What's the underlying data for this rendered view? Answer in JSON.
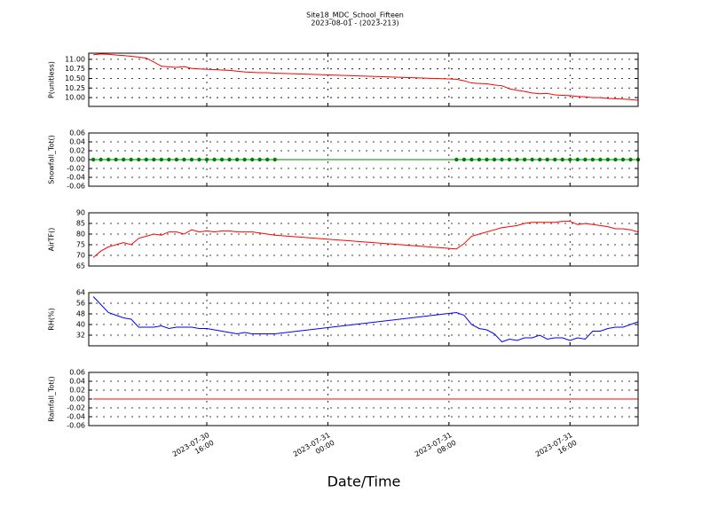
{
  "title": "Site18_MDC_School_Fifteen",
  "subtitle": "2023-08-01 - (2023-213)",
  "x_axis": {
    "label": "Date/Time",
    "xlim": [
      "2023-07-30 08:12",
      "2023-07-31 20:30"
    ],
    "xticks": [
      {
        "value": "2023-07-30 16:00",
        "label": "2023-07-30\n16:00"
      },
      {
        "value": "2023-07-31 00:00",
        "label": "2023-07-31\n00:00"
      },
      {
        "value": "2023-07-31 08:00",
        "label": "2023-07-31\n08:00"
      },
      {
        "value": "2023-07-31 16:00",
        "label": "2023-07-31\n16:00"
      }
    ],
    "x": [
      "2023-07-30 08:30",
      "2023-07-30 09:00",
      "2023-07-30 09:30",
      "2023-07-30 10:00",
      "2023-07-30 10:30",
      "2023-07-30 11:00",
      "2023-07-30 11:30",
      "2023-07-30 12:00",
      "2023-07-30 12:30",
      "2023-07-30 13:00",
      "2023-07-30 13:30",
      "2023-07-30 14:00",
      "2023-07-30 14:30",
      "2023-07-30 15:00",
      "2023-07-30 15:30",
      "2023-07-30 16:00",
      "2023-07-30 16:30",
      "2023-07-30 17:00",
      "2023-07-30 17:30",
      "2023-07-30 18:00",
      "2023-07-30 18:30",
      "2023-07-30 19:00",
      "2023-07-30 19:30",
      "2023-07-30 20:00",
      "2023-07-30 20:30",
      "2023-07-31 08:30",
      "2023-07-31 09:00",
      "2023-07-31 09:30",
      "2023-07-31 10:00",
      "2023-07-31 10:30",
      "2023-07-31 11:00",
      "2023-07-31 11:30",
      "2023-07-31 12:00",
      "2023-07-31 12:30",
      "2023-07-31 13:00",
      "2023-07-31 13:30",
      "2023-07-31 14:00",
      "2023-07-31 14:30",
      "2023-07-31 15:00",
      "2023-07-31 15:30",
      "2023-07-31 16:00",
      "2023-07-31 16:30",
      "2023-07-31 17:00",
      "2023-07-31 17:30",
      "2023-07-31 18:00",
      "2023-07-31 18:30",
      "2023-07-31 19:00",
      "2023-07-31 19:30",
      "2023-07-31 20:00",
      "2023-07-31 20:30"
    ]
  },
  "chart_data": [
    {
      "type": "line",
      "y_label": "P(unitless)",
      "ylim": [
        9.77,
        11.16
      ],
      "grid": true,
      "yticks": [
        {
          "value": 10,
          "label": "10.00"
        },
        {
          "value": 10.25,
          "label": "10.25"
        },
        {
          "value": 10.5,
          "label": "10.50"
        },
        {
          "value": 10.75,
          "label": "10.75"
        },
        {
          "value": 11,
          "label": "11.00"
        }
      ],
      "series": [
        {
          "color": "#ff0000",
          "marker": false,
          "values": [
            11.12,
            11.14,
            11.13,
            11.11,
            11.1,
            11.08,
            11.06,
            11.03,
            10.93,
            10.82,
            10.8,
            10.79,
            10.81,
            10.76,
            10.75,
            10.74,
            10.73,
            10.72,
            10.71,
            10.69,
            10.67,
            10.66,
            10.65,
            10.65,
            10.64,
            10.48,
            10.44,
            10.38,
            10.37,
            10.36,
            10.33,
            10.31,
            10.23,
            10.19,
            10.16,
            10.12,
            10.1,
            10.11,
            10.07,
            10.06,
            10.05,
            10.03,
            10.02,
            10.0,
            10.0,
            9.98,
            9.97,
            9.96,
            9.95,
            9.93
          ]
        }
      ]
    },
    {
      "type": "line",
      "y_label": "Snowfall_Tot()",
      "ylim": [
        -0.06,
        0.06
      ],
      "grid": true,
      "yticks": [
        -0.06,
        -0.04,
        -0.02,
        {
          "value": 0,
          "label": "0.00"
        },
        0.02,
        0.04,
        0.06
      ],
      "series": [
        {
          "color": "#008000",
          "marker": true,
          "values": [
            0,
            0,
            0,
            0,
            0,
            0,
            0,
            0,
            0,
            0,
            0,
            0,
            0,
            0,
            0,
            0,
            0,
            0,
            0,
            0,
            0,
            0,
            0,
            0,
            0,
            0,
            0,
            0,
            0,
            0,
            0,
            0,
            0,
            0,
            0,
            0,
            0,
            0,
            0,
            0,
            0,
            0,
            0,
            0,
            0,
            0,
            0,
            0,
            0,
            0
          ]
        }
      ]
    },
    {
      "type": "line",
      "y_label": "AirTF()",
      "ylim": [
        65,
        90
      ],
      "grid": true,
      "yticks": [
        65,
        70,
        75,
        80,
        85,
        90
      ],
      "series": [
        {
          "color": "#ff0000",
          "marker": false,
          "values": [
            69,
            72,
            74,
            75,
            76,
            75,
            78,
            79,
            80,
            79.5,
            81,
            81,
            80,
            82,
            81,
            81.5,
            81,
            81.5,
            81.5,
            81,
            81,
            81,
            80.5,
            80,
            79.5,
            73,
            75.5,
            79,
            80,
            81,
            82,
            83,
            83.5,
            84,
            85,
            85.5,
            85.5,
            85.5,
            85.5,
            86,
            86,
            84.5,
            85,
            84.5,
            84,
            83.5,
            82.5,
            82.5,
            82,
            81
          ]
        }
      ]
    },
    {
      "type": "line",
      "y_label": "RH(%)",
      "ylim": [
        24,
        64
      ],
      "grid": true,
      "yticks": [
        32,
        40,
        48,
        56,
        64
      ],
      "series": [
        {
          "color": "#0000ff",
          "marker": false,
          "values": [
            61,
            55,
            49,
            47,
            45,
            44,
            38,
            38,
            38,
            39,
            37,
            38,
            38,
            38,
            37,
            37,
            36,
            35,
            34,
            33,
            34,
            33,
            33,
            33,
            33,
            49,
            47,
            40,
            37,
            36,
            33,
            27,
            29,
            28,
            30,
            30,
            32,
            29,
            30,
            30,
            28,
            30,
            29,
            35,
            35,
            37,
            38,
            38,
            40,
            42
          ]
        }
      ]
    },
    {
      "type": "line",
      "y_label": "Rainfall_Tot()",
      "ylim": [
        -0.06,
        0.06
      ],
      "grid": true,
      "yticks": [
        -0.06,
        -0.04,
        -0.02,
        {
          "value": 0,
          "label": "0.00"
        },
        0.02,
        0.04,
        0.06
      ],
      "series": [
        {
          "color": "#ff0000",
          "marker": false,
          "values": [
            0,
            0,
            0,
            0,
            0,
            0,
            0,
            0,
            0,
            0,
            0,
            0,
            0,
            0,
            0,
            0,
            0,
            0,
            0,
            0,
            0,
            0,
            0,
            0,
            0,
            0,
            0,
            0,
            0,
            0,
            0,
            0,
            0,
            0,
            0,
            0,
            0,
            0,
            0,
            0,
            0,
            0,
            0,
            0,
            0,
            0,
            0,
            0,
            0,
            0
          ]
        }
      ]
    }
  ]
}
